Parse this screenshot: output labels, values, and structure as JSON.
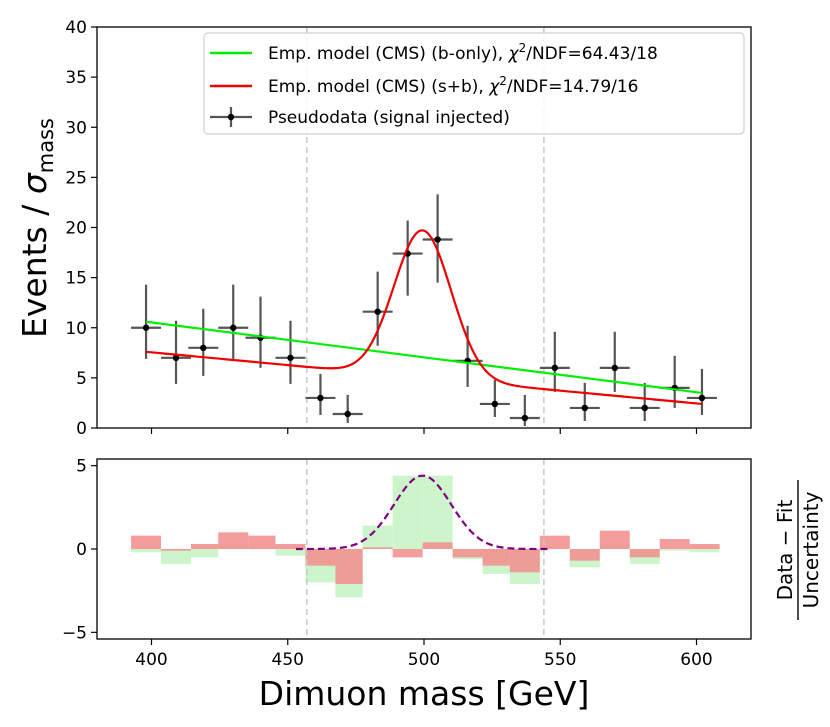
{
  "chart_data": [
    {
      "type": "scatter",
      "panel": "main",
      "ylabel_main": "Events / ",
      "ylabel_sigma": "σ",
      "ylabel_sub": "mass",
      "xlim": [
        380,
        620
      ],
      "ylim": [
        0,
        40
      ],
      "yticks": [
        0,
        5,
        10,
        15,
        20,
        25,
        30,
        35,
        40
      ],
      "vlines": [
        457,
        544
      ],
      "bin_half_width": 5.5,
      "series": [
        {
          "name": "Pseudodata (signal injected)",
          "kind": "errorbar",
          "color": "#000000",
          "x": [
            398,
            409,
            419,
            430,
            440,
            451,
            462,
            472,
            483,
            494,
            505,
            516,
            526,
            537,
            548,
            559,
            570,
            581,
            592,
            602
          ],
          "y": [
            10,
            7,
            8,
            10,
            9,
            7,
            3,
            1.4,
            11.6,
            17.4,
            18.8,
            6.7,
            2.4,
            1.0,
            6,
            2,
            6,
            2,
            4,
            3
          ],
          "yerr_low": [
            3.1,
            2.6,
            2.8,
            3.1,
            3.0,
            2.6,
            1.7,
            0.9,
            3.4,
            4.2,
            4.3,
            2.6,
            1.3,
            0.8,
            2.4,
            1.3,
            2.4,
            1.3,
            2.0,
            1.7
          ],
          "yerr_high": [
            4.3,
            3.7,
            3.9,
            4.3,
            4.1,
            3.7,
            2.4,
            1.9,
            4.0,
            3.3,
            4.5,
            3.5,
            2.4,
            2.3,
            3.6,
            2.5,
            3.6,
            2.5,
            3.2,
            2.9
          ]
        },
        {
          "name": "Emp. model (CMS) (b-only)",
          "chi2_text": "χ²/NDF=64.43/18",
          "kind": "line",
          "color": "#00ee00",
          "x": [
            398,
            602
          ],
          "y": [
            10.6,
            3.5
          ]
        },
        {
          "name": "Emp. model (CMS) (s+b)",
          "chi2_text": "χ²/NDF=14.79/16",
          "kind": "line",
          "color": "#ee0000",
          "background": {
            "x0": 398,
            "y0": 7.6,
            "x1": 602,
            "y1": 2.4
          },
          "peak": {
            "mean": 499.5,
            "sigma": 10.5,
            "amplitude": 14.7
          }
        }
      ],
      "legend": {
        "location": "upper right",
        "entries": [
          {
            "label": "Emp. model (CMS) (b-only), ",
            "chi": "χ",
            "chi_sup": "2",
            "tail": "/NDF=64.43/18"
          },
          {
            "label": "Emp. model (CMS) (s+b), ",
            "chi": "χ",
            "chi_sup": "2",
            "tail": "/NDF=14.79/16"
          },
          {
            "label": "Pseudodata (signal injected)",
            "chi": "",
            "chi_sup": "",
            "tail": ""
          }
        ]
      }
    },
    {
      "type": "bar",
      "panel": "pull",
      "xlabel": "Dimuon mass [GeV]",
      "ylabel_top": "Data − Fit",
      "ylabel_bottom": "Uncertainty",
      "xlim": [
        380,
        620
      ],
      "xticks": [
        400,
        450,
        500,
        550,
        600
      ],
      "ylim": [
        -5.4,
        5.4
      ],
      "yticks": [
        -5,
        0,
        5
      ],
      "vlines": [
        457,
        544
      ],
      "bin_edges": [
        392.5,
        403.5,
        414.5,
        424.5,
        435.5,
        445.5,
        456.5,
        467.5,
        477.5,
        488.5,
        499.5,
        510.5,
        521.5,
        531.5,
        542.5,
        553.5,
        564.5,
        575.5,
        586.5,
        597.5,
        608.5
      ],
      "pull_bonly": [
        -0.2,
        -0.9,
        -0.5,
        0.3,
        0.1,
        -0.4,
        -2.0,
        -2.9,
        1.4,
        4.4,
        4.4,
        -0.6,
        -1.5,
        -2.1,
        0.1,
        -1.1,
        0.3,
        -0.9,
        -0.1,
        -0.2
      ],
      "pull_sb": [
        0.8,
        -0.1,
        0.3,
        1.0,
        0.8,
        0.3,
        -1.0,
        -2.1,
        0.1,
        -0.5,
        0.4,
        -0.5,
        -1.0,
        -1.4,
        0.8,
        -0.7,
        1.1,
        -0.5,
        0.6,
        0.3
      ],
      "colors": {
        "bonly": "#ccf5cc",
        "sb": "#f28c8c",
        "signal": "#800080"
      },
      "signal_curve": {
        "x_range": [
          453,
          546
        ],
        "mean": 499.5,
        "sigma": 10.5,
        "amplitude": 4.4
      }
    }
  ]
}
